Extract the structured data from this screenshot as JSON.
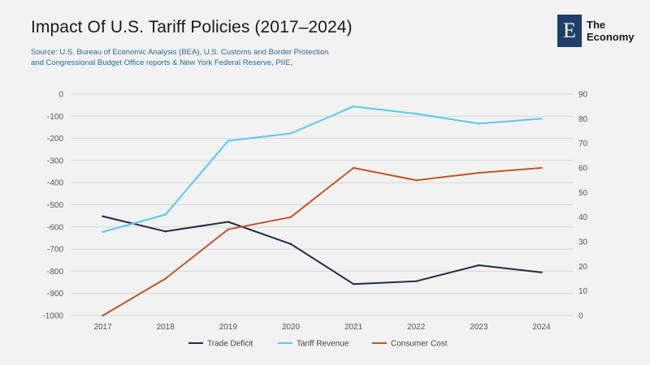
{
  "header": {
    "title": "Impact Of U.S. Tariff Policies (2017–2024)",
    "source_line1": "Source: U.S. Bureau of Economic Analysis (BEA), U.S. Customs and Border Protection",
    "source_line2": "and Congressional Budget Office reports &  New York Federal Reserve, PIIE,"
  },
  "logo": {
    "mark": "E",
    "line1": "The",
    "line2": "Economy"
  },
  "colors": {
    "background": "#f2f2f2",
    "trade_deficit": "#1f2e45",
    "tariff_revenue": "#5bc8ec",
    "consumer_cost": "#c0562b",
    "grid": "#d6d6d6"
  },
  "chart_data": {
    "type": "line",
    "title": "Impact Of U.S. Tariff Policies (2017–2024)",
    "categories": [
      "2017",
      "2018",
      "2019",
      "2020",
      "2021",
      "2022",
      "2023",
      "2024"
    ],
    "y_left": {
      "range": [
        -1000,
        0
      ],
      "ticks": [
        "0",
        "-100",
        "-200",
        "-300",
        "-400",
        "-500",
        "-600",
        "-700",
        "-800",
        "-900",
        "-1000"
      ]
    },
    "y_right": {
      "range": [
        0,
        90
      ],
      "ticks": [
        "90",
        "80",
        "70",
        "60",
        "50",
        "40",
        "30",
        "20",
        "10",
        "0"
      ]
    },
    "grid": true,
    "legend_position": "bottom",
    "series": [
      {
        "name": "Trade Deficit",
        "axis": "left",
        "color": "#1f2e45",
        "values": [
          -552,
          -620,
          -577,
          -677,
          -858,
          -845,
          -773,
          -805
        ]
      },
      {
        "name": "Tariff Revenue",
        "axis": "right",
        "color": "#5bc8ec",
        "values": [
          34,
          41,
          71,
          74,
          85,
          82,
          78,
          80
        ]
      },
      {
        "name": "Consumer Cost",
        "axis": "right",
        "color": "#c0562b",
        "values": [
          0,
          15,
          35,
          40,
          60,
          55,
          58,
          60
        ]
      }
    ]
  }
}
